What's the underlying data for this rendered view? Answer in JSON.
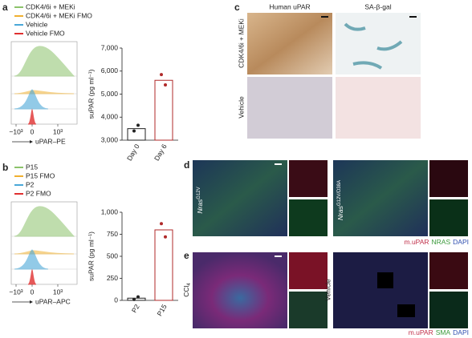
{
  "panels": {
    "a": {
      "label": "a",
      "legend": [
        "CDK4/6i + MEKi",
        "CDK4/6i + MEKi FMO",
        "Vehicle",
        "Vehicle FMO"
      ],
      "colors": [
        "#8cc36b",
        "#f0b030",
        "#4aa8d8",
        "#e03030"
      ],
      "xticks": [
        "−10³",
        "0",
        "10³"
      ],
      "xlabel": "uPAR–PE"
    },
    "b": {
      "label": "b",
      "legend": [
        "P15",
        "P15 FMO",
        "P2",
        "P2 FMO"
      ],
      "colors": [
        "#8cc36b",
        "#f0b030",
        "#4aa8d8",
        "#e03030"
      ],
      "xticks": [
        "−10³",
        "0",
        "10³"
      ],
      "xlabel": "uPAR–APC"
    },
    "c": {
      "label": "c",
      "columns": [
        "Human uPAR",
        "SA-β-gal"
      ],
      "rows": [
        "CDK4/6i + MEKi",
        "Vehicle"
      ]
    },
    "d": {
      "label": "d",
      "images": [
        {
          "gene": "Nras",
          "allele": "G12V"
        },
        {
          "gene": "Nras",
          "allele": "G12V/D38A"
        }
      ],
      "caption": [
        "m.uPAR",
        "NRAS",
        "DAPI"
      ],
      "caption_colors": [
        "#c0304a",
        "#3a9a3a",
        "#3050b0"
      ]
    },
    "e": {
      "label": "e",
      "images": [
        {
          "name": "CCl",
          "subscript": "4"
        },
        {
          "name": "Vehicle"
        }
      ],
      "caption": [
        "m.uPAR",
        "SMA",
        "DAPI"
      ],
      "caption_colors": [
        "#c0304a",
        "#3a9a3a",
        "#3050b0"
      ]
    }
  },
  "chart_data": [
    {
      "type": "bar",
      "ylabel": "suPAR (pg ml⁻¹)",
      "categories": [
        "Day 0",
        "Day 6"
      ],
      "values": [
        3500,
        5600
      ],
      "points": [
        [
          3400,
          3650
        ],
        [
          5850,
          5400
        ]
      ],
      "colors": [
        "#222222",
        "#b02a2a"
      ],
      "ylim": [
        3000,
        7000
      ],
      "yticks": [
        {
          "value": 3000,
          "label": "3,000"
        },
        {
          "value": 4000,
          "label": "4,000"
        },
        {
          "value": 5000,
          "label": "5,000"
        },
        {
          "value": 6000,
          "label": "6,000"
        },
        {
          "value": 7000,
          "label": "7,000"
        }
      ]
    },
    {
      "type": "bar",
      "ylabel": "suPAR (pg ml⁻¹)",
      "categories": [
        "P2",
        "P15"
      ],
      "values": [
        25,
        800
      ],
      "points": [
        [
          10,
          40
        ],
        [
          870,
          720
        ]
      ],
      "colors": [
        "#222222",
        "#b02a2a"
      ],
      "ylim": [
        0,
        1000
      ],
      "yticks": [
        0,
        250,
        500,
        750,
        {
          "value": 1000,
          "label": "1,000"
        }
      ]
    }
  ]
}
